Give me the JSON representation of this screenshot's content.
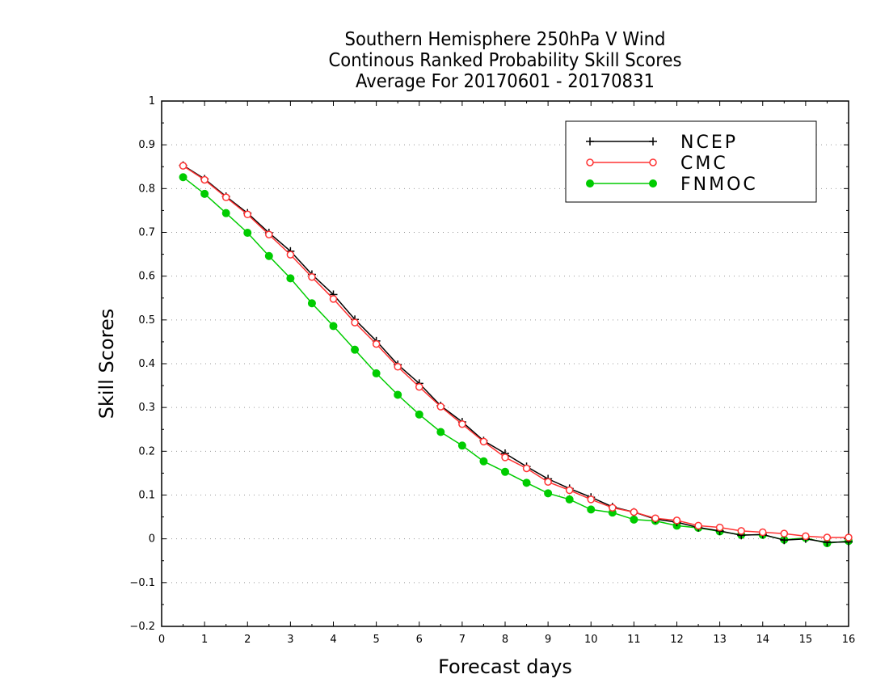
{
  "chart_data": {
    "type": "line",
    "title": [
      "Southern Hemisphere 250hPa V Wind",
      "Continous Ranked Probability Skill Scores",
      "Average For 20170601 - 20170831"
    ],
    "xlabel": "Forecast days",
    "ylabel": "Skill Scores",
    "xlim": [
      0,
      16
    ],
    "ylim": [
      -0.2,
      1
    ],
    "xticks": [
      0,
      1,
      2,
      3,
      4,
      5,
      6,
      7,
      8,
      9,
      10,
      11,
      12,
      13,
      14,
      15,
      16
    ],
    "yticks": [
      -0.2,
      -0.1,
      0,
      0.1,
      0.2,
      0.3,
      0.4,
      0.5,
      0.6,
      0.7,
      0.8,
      0.9,
      1
    ],
    "grid": true,
    "legend_position": "top-right",
    "x": [
      0.5,
      1,
      1.5,
      2,
      2.5,
      3,
      3.5,
      4,
      4.5,
      5,
      5.5,
      6,
      6.5,
      7,
      7.5,
      8,
      8.5,
      9,
      9.5,
      10,
      10.5,
      11,
      11.5,
      12,
      12.5,
      13,
      13.5,
      14,
      14.5,
      15,
      15.5,
      16
    ],
    "series": [
      {
        "name": "NCEP",
        "color": "#000000",
        "marker": "plus",
        "values": [
          0.853,
          0.822,
          0.782,
          0.744,
          0.699,
          0.657,
          0.604,
          0.558,
          0.501,
          0.452,
          0.398,
          0.355,
          0.304,
          0.267,
          0.224,
          0.195,
          0.165,
          0.137,
          0.115,
          0.095,
          0.073,
          0.061,
          0.045,
          0.038,
          0.026,
          0.018,
          0.008,
          0.01,
          -0.003,
          0.0,
          -0.008,
          -0.007
        ]
      },
      {
        "name": "CMC",
        "color": "#ff3333",
        "marker": "open-circle",
        "values": [
          0.852,
          0.82,
          0.78,
          0.741,
          0.695,
          0.649,
          0.598,
          0.548,
          0.494,
          0.445,
          0.393,
          0.347,
          0.302,
          0.262,
          0.222,
          0.186,
          0.161,
          0.13,
          0.111,
          0.09,
          0.071,
          0.061,
          0.047,
          0.042,
          0.03,
          0.026,
          0.018,
          0.015,
          0.012,
          0.006,
          0.003,
          0.003
        ]
      },
      {
        "name": "FNMOC",
        "color": "#00cc00",
        "marker": "filled-circle",
        "values": [
          0.826,
          0.788,
          0.744,
          0.699,
          0.646,
          0.595,
          0.538,
          0.486,
          0.432,
          0.378,
          0.329,
          0.284,
          0.244,
          0.213,
          0.177,
          0.153,
          0.128,
          0.104,
          0.09,
          0.067,
          0.06,
          0.044,
          0.041,
          0.03,
          0.025,
          0.017,
          0.009,
          0.009,
          -0.002,
          0.002,
          -0.01,
          -0.005
        ]
      }
    ]
  }
}
